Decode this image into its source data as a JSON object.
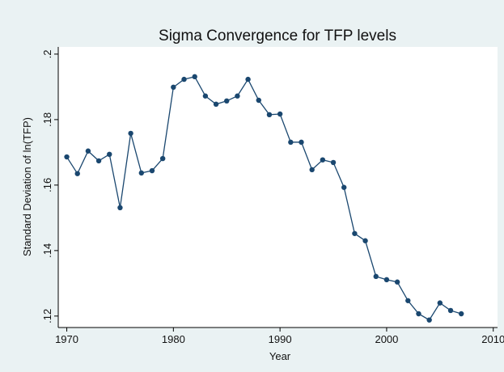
{
  "chart_data": {
    "type": "line",
    "title": "Sigma Convergence for TFP levels",
    "x_label": "Year",
    "y_label": "Standard Deviation of ln(TFP)",
    "x": [
      1970,
      1971,
      1972,
      1973,
      1974,
      1975,
      1976,
      1977,
      1978,
      1979,
      1980,
      1981,
      1982,
      1983,
      1984,
      1985,
      1986,
      1987,
      1988,
      1989,
      1990,
      1991,
      1992,
      1993,
      1994,
      1995,
      1996,
      1997,
      1998,
      1999,
      2000,
      2001,
      2002,
      2003,
      2004,
      2005,
      2006,
      2007
    ],
    "series": [
      {
        "color": "#1a476f",
        "values": [
          0.1686,
          0.1635,
          0.1704,
          0.1674,
          0.1694,
          0.1531,
          0.1758,
          0.1637,
          0.1644,
          0.1681,
          0.1899,
          0.1923,
          0.1931,
          0.1872,
          0.1847,
          0.1857,
          0.1872,
          0.1923,
          0.1859,
          0.1815,
          0.1817,
          0.1731,
          0.1731,
          0.1647,
          0.1677,
          0.1669,
          0.1593,
          0.1452,
          0.143,
          0.1321,
          0.1311,
          0.1304,
          0.1247,
          0.1207,
          0.1188,
          0.124,
          0.1217,
          0.1207
        ]
      }
    ],
    "xlim": [
      1969.2,
      2010.4
    ],
    "ylim": [
      0.1165,
      0.2022
    ],
    "xticks": [
      1970,
      1980,
      1990,
      2000,
      2010
    ],
    "yticks": [
      {
        "value": 0.12,
        "label": ".12"
      },
      {
        "value": 0.14,
        "label": ".14"
      },
      {
        "value": 0.16,
        "label": ".16"
      },
      {
        "value": 0.18,
        "label": ".18"
      },
      {
        "value": 0.2,
        "label": ".2"
      }
    ]
  }
}
